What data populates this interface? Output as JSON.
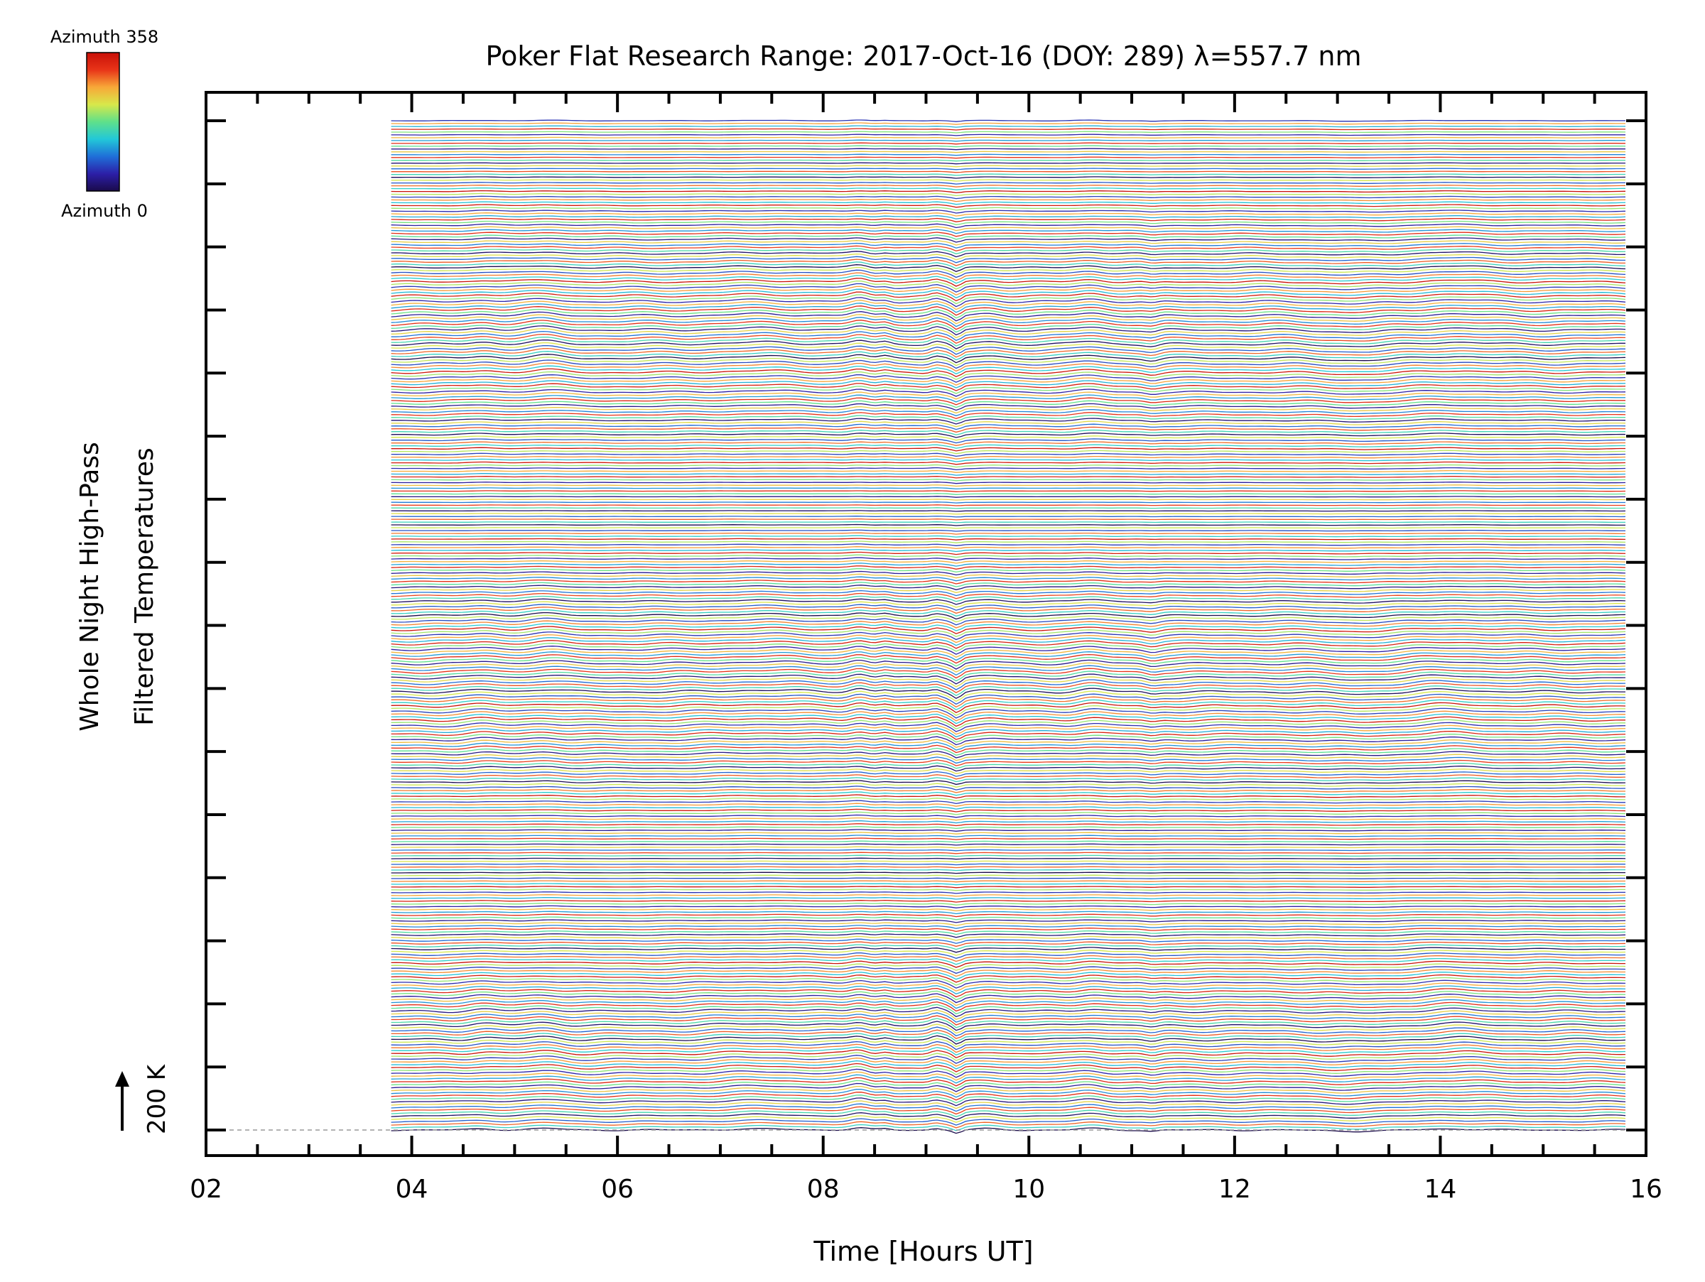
{
  "chart_data": {
    "type": "line",
    "title": "Poker Flat Research Range: 2017-Oct-16 (DOY: 289) λ=557.7 nm",
    "xlabel": "Time [Hours UT]",
    "ylabel_lines": [
      "Whole Night High-Pass",
      "Filtered Temperatures"
    ],
    "scale_label": "200 K",
    "xlim": [
      2,
      16
    ],
    "x_ticks": [
      "02",
      "04",
      "06",
      "08",
      "10",
      "12",
      "14",
      "16"
    ],
    "data_start_hour": 3.8,
    "data_end_hour": 15.8,
    "azimuth_range": [
      0,
      358
    ],
    "series_count": 358,
    "y_offset_per_series_K": 1,
    "major_y_tick_count": 17,
    "colorbar": {
      "top_label": "Azimuth 358",
      "bottom_label": "Azimuth 0",
      "colormap": "rainbow",
      "stops": [
        "#1a0a4a",
        "#2c1fa8",
        "#1f6fd8",
        "#22c8d8",
        "#5fe08a",
        "#d8e84a",
        "#f8a838",
        "#e83418",
        "#c81008"
      ]
    },
    "grid": false,
    "legend_placement": "top-left"
  }
}
